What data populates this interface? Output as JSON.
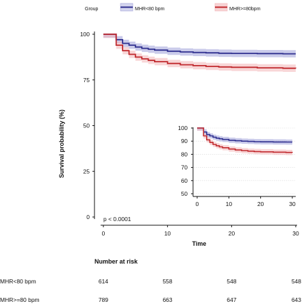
{
  "legend": {
    "title": "Group",
    "items": [
      {
        "label": "MHR<80 bpm",
        "color": "#2f2f8f"
      },
      {
        "label": "MHR>=80bpm",
        "color": "#c0282d"
      }
    ]
  },
  "chart_data": {
    "type": "line",
    "title": "",
    "xlabel": "Time",
    "ylabel": "Survival probability (%)",
    "xlim": [
      0,
      30
    ],
    "ylim": [
      0,
      100
    ],
    "x_ticks": [
      0,
      10,
      20,
      30
    ],
    "y_ticks": [
      0,
      25,
      50,
      75,
      100
    ],
    "annotation": "p < 0.0001",
    "series": [
      {
        "name": "MHR<80 bpm",
        "color": "#2f2f8f",
        "band_color": "#9fa0d8",
        "x": [
          0,
          1,
          2,
          3,
          4,
          5,
          6,
          7,
          8,
          10,
          12,
          14,
          16,
          18,
          20,
          24,
          28,
          30
        ],
        "y": [
          100,
          100,
          97,
          95,
          94,
          93,
          92.3,
          91.8,
          91.3,
          90.7,
          90.3,
          90,
          89.8,
          89.6,
          89.5,
          89.4,
          89.3,
          89.3
        ],
        "band": 2
      },
      {
        "name": "MHR>=80bpm",
        "color": "#c0282d",
        "band_color": "#f2b5b7",
        "x": [
          0,
          1,
          2,
          3,
          4,
          5,
          6,
          7,
          8,
          10,
          12,
          14,
          16,
          18,
          20,
          24,
          28,
          30
        ],
        "y": [
          100,
          100,
          94,
          91,
          89,
          87.5,
          86.5,
          85.7,
          85,
          84,
          83.3,
          82.8,
          82.4,
          82.1,
          81.9,
          81.6,
          81.4,
          81.3
        ],
        "band": 2
      }
    ],
    "inset": {
      "xlim": [
        0,
        30
      ],
      "ylim": [
        50,
        100
      ],
      "x_ticks": [
        0,
        10,
        20,
        30
      ],
      "y_ticks": [
        50,
        60,
        70,
        80,
        90,
        100
      ],
      "grid": true
    },
    "risk_table": {
      "title": "Number at risk",
      "times": [
        0,
        10,
        20,
        30
      ],
      "rows": [
        {
          "label": "MHR<80 bpm",
          "values": [
            "614",
            "558",
            "548",
            "548"
          ]
        },
        {
          "label": "MHR>=80 bpm",
          "values": [
            "789",
            "663",
            "647",
            "643"
          ]
        }
      ]
    }
  }
}
